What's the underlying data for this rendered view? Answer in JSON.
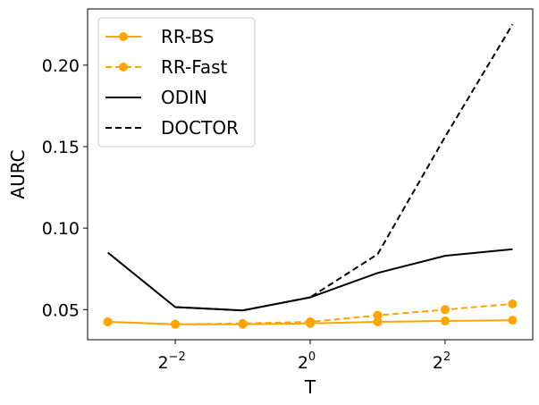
{
  "chart_data": {
    "type": "line",
    "xscale": "log2",
    "xlabel": "T",
    "ylabel": "AURC",
    "xlim_exp": [
      -3.3,
      3.3
    ],
    "ylim": [
      0.0315,
      0.2345
    ],
    "x_ticks": [
      {
        "exp": -2,
        "base": "2",
        "power": "−2"
      },
      {
        "exp": 0,
        "base": "2",
        "power": "0"
      },
      {
        "exp": 2,
        "base": "2",
        "power": "2"
      }
    ],
    "y_ticks": [
      {
        "value": 0.05,
        "label": "0.05"
      },
      {
        "value": 0.1,
        "label": "0.10"
      },
      {
        "value": 0.15,
        "label": "0.15"
      },
      {
        "value": 0.2,
        "label": "0.20"
      }
    ],
    "x_exps": [
      -3,
      -2,
      -1,
      0,
      1,
      2,
      3
    ],
    "series": [
      {
        "name": "RR-BS",
        "color": "#ffa500",
        "dash": "solid",
        "marker": true,
        "values": [
          0.0425,
          0.041,
          0.041,
          0.0415,
          0.0425,
          0.043,
          0.0435
        ]
      },
      {
        "name": "RR-Fast",
        "color": "#ffa500",
        "dash": "dashed",
        "marker": true,
        "values": [
          0.0425,
          0.041,
          0.0415,
          0.0425,
          0.0465,
          0.05,
          0.0535
        ]
      },
      {
        "name": "ODIN",
        "color": "#000000",
        "dash": "solid",
        "marker": false,
        "values": [
          0.085,
          0.0515,
          0.0495,
          0.0575,
          0.0725,
          0.083,
          0.087
        ]
      },
      {
        "name": "DOCTOR",
        "color": "#000000",
        "dash": "dashed",
        "marker": false,
        "values": [
          null,
          0.0515,
          0.0495,
          0.0575,
          0.084,
          0.156,
          0.225
        ]
      }
    ],
    "legend_position": "top-left"
  }
}
